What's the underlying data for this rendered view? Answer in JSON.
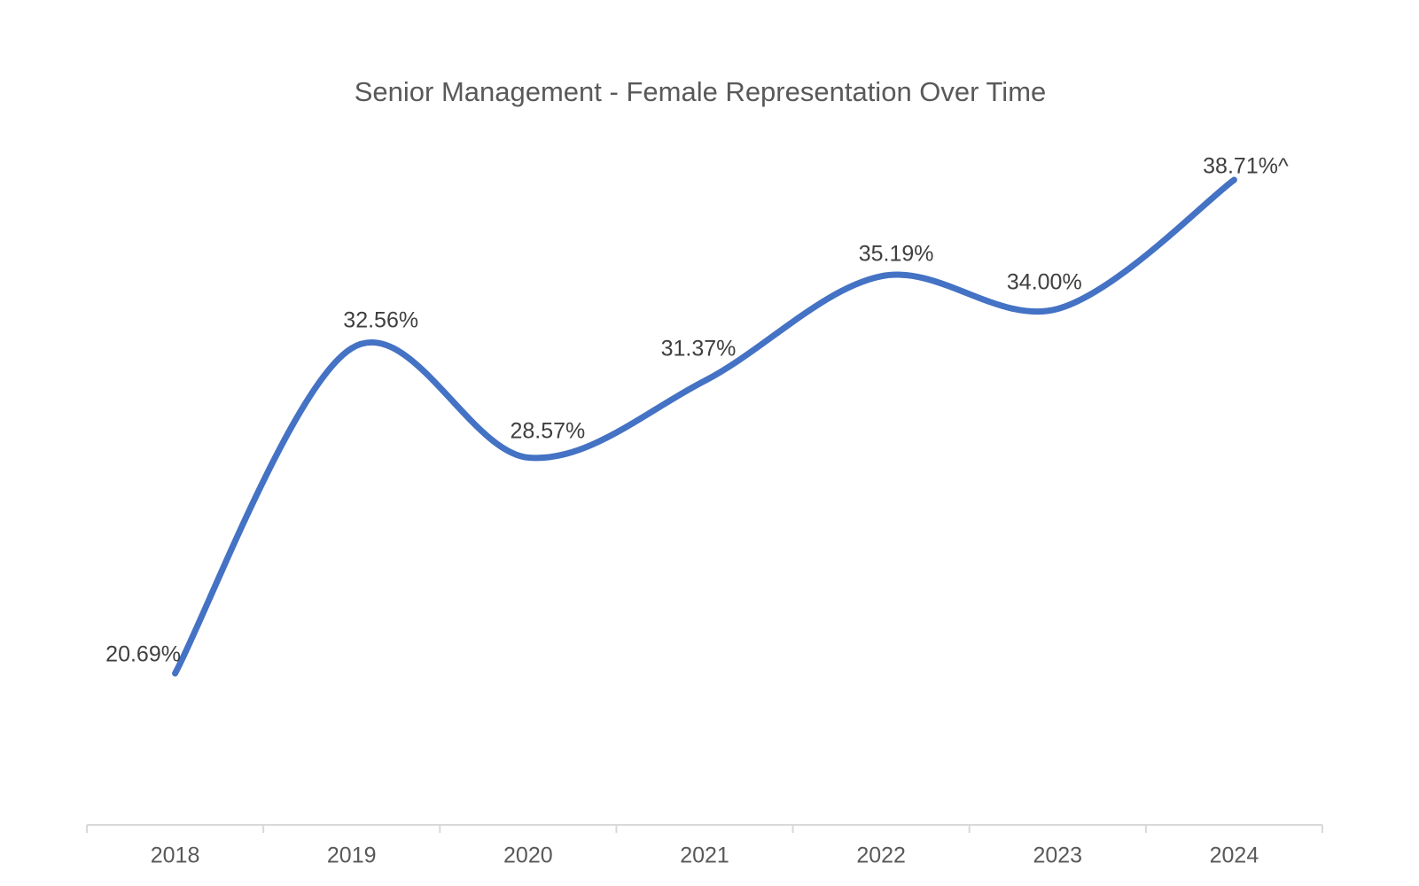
{
  "chart_data": {
    "type": "line",
    "title": "Senior Management - Female Representation Over Time",
    "categories": [
      "2018",
      "2019",
      "2020",
      "2021",
      "2022",
      "2023",
      "2024"
    ],
    "values": [
      20.69,
      32.56,
      28.57,
      31.37,
      35.19,
      34.0,
      38.71
    ],
    "data_labels": [
      "20.69%",
      "32.56%",
      "28.57%",
      "31.37%",
      "35.19%",
      "34.00%",
      "38.71%^"
    ],
    "unit": "%",
    "smooth": true,
    "grid": false,
    "legend": "none",
    "y_axis_visible": false,
    "x_axis_ticks": "outside-at-category-boundaries",
    "ylim_implied": [
      15,
      40
    ],
    "colors": {
      "line": "#4472C4",
      "title_text": "#595959",
      "axis_text": "#595959",
      "data_label_text": "#3F3F3F",
      "axis_line": "#D9D9D9",
      "background": "#FFFFFF"
    }
  }
}
